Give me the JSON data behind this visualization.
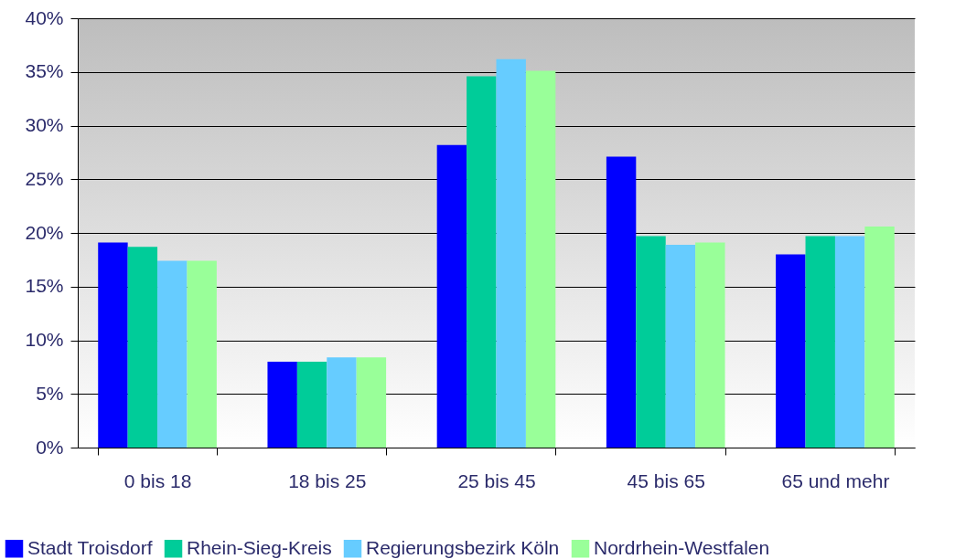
{
  "chart_data": {
    "type": "bar",
    "categories": [
      "0 bis 18",
      "18 bis 25",
      "25 bis 45",
      "45 bis 65",
      "65 und mehr"
    ],
    "series": [
      {
        "name": "Stadt Troisdorf",
        "color": "#0000ff",
        "values": [
          19.1,
          8.0,
          28.2,
          27.1,
          18.0
        ]
      },
      {
        "name": "Rhein-Sieg-Kreis",
        "color": "#00cc99",
        "values": [
          18.7,
          8.0,
          34.6,
          19.7,
          19.7
        ]
      },
      {
        "name": "Regierungsbezirk Köln",
        "color": "#66ccff",
        "values": [
          17.4,
          8.4,
          36.2,
          18.9,
          19.7
        ]
      },
      {
        "name": "Nordrhein-Westfalen",
        "color": "#99ff99",
        "values": [
          17.4,
          8.4,
          35.1,
          19.1,
          20.6
        ]
      }
    ],
    "ylim": [
      0,
      40
    ],
    "yticks": [
      {
        "value": 0,
        "label": "0%"
      },
      {
        "value": 5,
        "label": "5%"
      },
      {
        "value": 10,
        "label": "10%"
      },
      {
        "value": 15,
        "label": "15%"
      },
      {
        "value": 20,
        "label": "20%"
      },
      {
        "value": 25,
        "label": "25%"
      },
      {
        "value": 30,
        "label": "30%"
      },
      {
        "value": 35,
        "label": "35%"
      },
      {
        "value": 40,
        "label": "40%"
      }
    ],
    "grid": "y",
    "legend": "bottom"
  }
}
